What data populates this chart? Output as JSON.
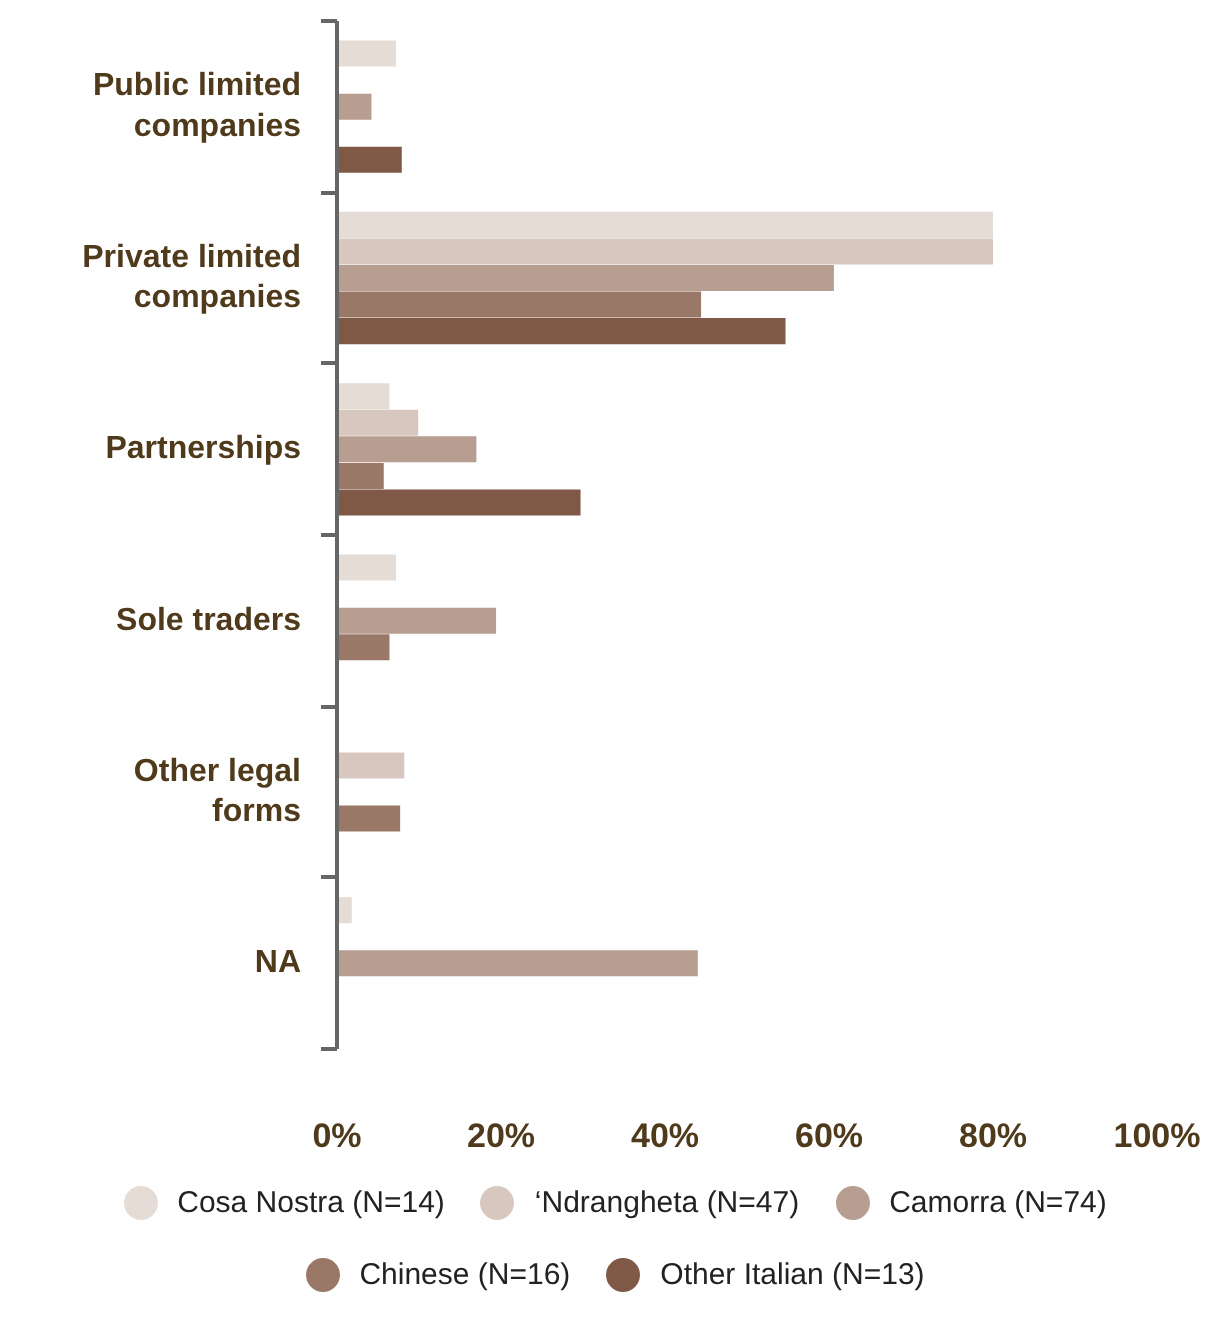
{
  "chart_data": {
    "type": "bar",
    "orientation": "horizontal",
    "categories": [
      "Public limited companies",
      "Private limited companies",
      "Partnerships",
      "Sole traders",
      "Other legal forms",
      "NA"
    ],
    "series": [
      {
        "name": "Cosa Nostra (N=14)",
        "color": "#e5dcd6",
        "values": [
          7.2,
          80,
          6.4,
          7.2,
          null,
          1.8
        ]
      },
      {
        "name": "‘Ndrangheta (N=47)",
        "color": "#d8c7bf",
        "values": [
          null,
          80,
          9.9,
          null,
          8.2,
          null
        ]
      },
      {
        "name": "Camorra (N=74)",
        "color": "#b89d91",
        "values": [
          4.2,
          60.6,
          17,
          19.4,
          null,
          44
        ]
      },
      {
        "name": "Chinese (N=16)",
        "color": "#9a7868",
        "values": [
          null,
          44.4,
          5.7,
          6.4,
          7.7,
          null
        ]
      },
      {
        "name": "Other Italian (N=13)",
        "color": "#7f5846",
        "values": [
          7.9,
          54.7,
          29.7,
          null,
          null,
          null
        ]
      }
    ],
    "xlim": [
      0,
      100
    ],
    "xticks": [
      {
        "value": 0,
        "label": "0%"
      },
      {
        "value": 20,
        "label": "20%"
      },
      {
        "value": 40,
        "label": "40%"
      },
      {
        "value": 60,
        "label": "60%"
      },
      {
        "value": 80,
        "label": "80%"
      },
      {
        "value": 100,
        "label": "100%"
      }
    ],
    "legend": "bottom"
  }
}
